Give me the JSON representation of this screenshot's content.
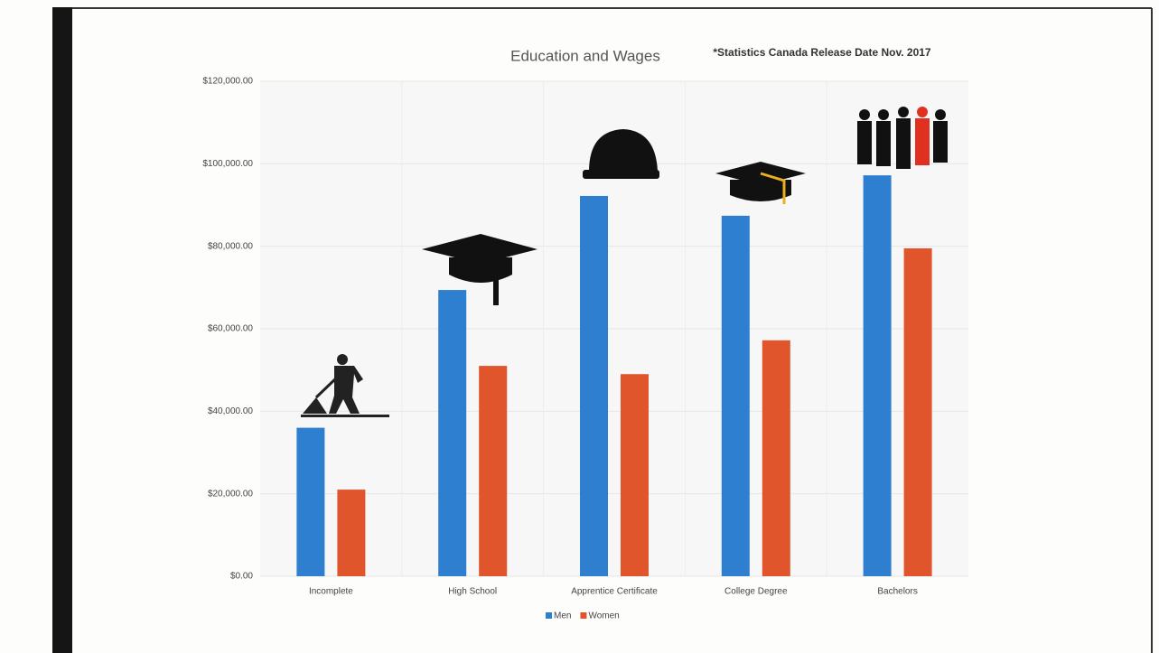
{
  "chart_data": {
    "type": "bar",
    "title": "Education and Wages",
    "subtitle": "*Statistics Canada Release Date Nov. 2017",
    "categories": [
      "Incomplete",
      "High School",
      "Apprentice Certificate",
      "College Degree",
      "Bachelors"
    ],
    "series": [
      {
        "name": "Men",
        "color": "#2f7fd0",
        "values": [
          36000,
          69400,
          92200,
          87400,
          97200
        ]
      },
      {
        "name": "Women",
        "color": "#e0552b",
        "values": [
          21000,
          51000,
          49000,
          57200,
          79500
        ]
      }
    ],
    "ylim": [
      0,
      120000
    ],
    "yticks": [
      {
        "value": 0,
        "label": "$0.00"
      },
      {
        "value": 20000,
        "label": "$20,000.00"
      },
      {
        "value": 40000,
        "label": "$40,000.00"
      },
      {
        "value": 60000,
        "label": "$60,000.00"
      },
      {
        "value": 80000,
        "label": "$80,000.00"
      },
      {
        "value": 100000,
        "label": "$100,000.00"
      },
      {
        "value": 120000,
        "label": "$120,000.00"
      }
    ],
    "grid": true,
    "legend": "bottom"
  }
}
